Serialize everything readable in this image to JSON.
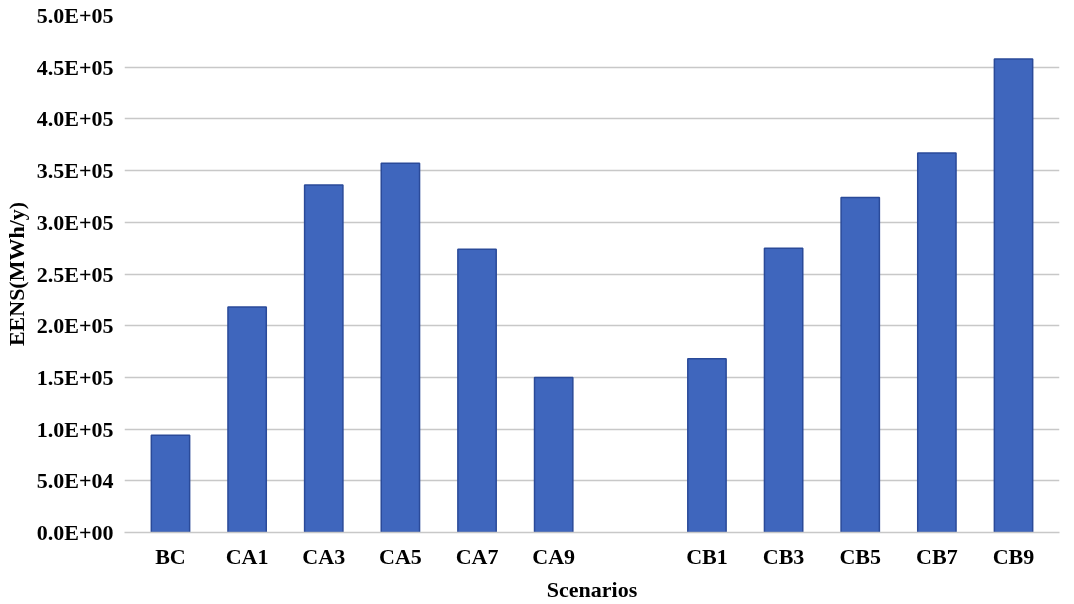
{
  "chart_data": {
    "type": "bar",
    "xlabel": "Scenarios",
    "ylabel": "EENS(MWh/y)",
    "categories": [
      "BC",
      "CA1",
      "CA3",
      "CA5",
      "CA7",
      "CA9",
      null,
      "CB1",
      "CB3",
      "CB5",
      "CB7",
      "CB9"
    ],
    "values": [
      94000,
      218000,
      336000,
      357000,
      274000,
      150000,
      null,
      168000,
      275000,
      324000,
      367000,
      458000
    ],
    "color": "#3f66bd",
    "ylim": [
      0,
      500000
    ],
    "yticks": [
      {
        "value": 0,
        "label": "0.0E+00"
      },
      {
        "value": 50000,
        "label": "5.0E+04"
      },
      {
        "value": 100000,
        "label": "1.0E+05"
      },
      {
        "value": 150000,
        "label": "1.5E+05"
      },
      {
        "value": 200000,
        "label": "2.0E+05"
      },
      {
        "value": 250000,
        "label": "2.5E+05"
      },
      {
        "value": 300000,
        "label": "3.0E+05"
      },
      {
        "value": 350000,
        "label": "3.5E+05"
      },
      {
        "value": 400000,
        "label": "4.0E+05"
      },
      {
        "value": 450000,
        "label": "4.5E+05"
      },
      {
        "value": 500000,
        "label": "5.0E+05"
      }
    ],
    "grid": "y"
  }
}
